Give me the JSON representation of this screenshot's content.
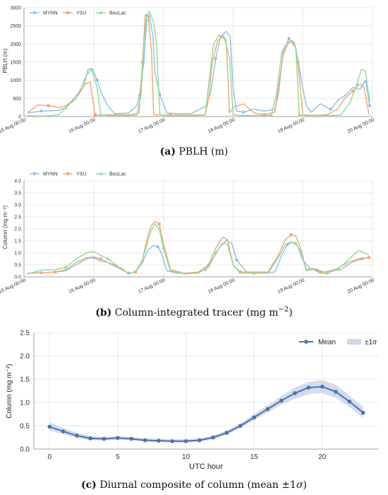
{
  "colors": {
    "mynn": "#90bde8",
    "ysu": "#f5a46e",
    "boulac": "#88de96",
    "mean": "#4b72b0",
    "band": "#cdd6ea",
    "grid": "#e3e3e3",
    "axis": "#555555"
  },
  "chart_data": [
    {
      "type": "line",
      "ylabel": "PBLH (m)",
      "xlabel": "",
      "ylim": [
        0,
        3000
      ],
      "yticks": [
        "0",
        "500",
        "1000",
        "1500",
        "2000",
        "2500",
        "3000"
      ],
      "xlim_days": [
        0,
        5
      ],
      "xticks": [
        "15 Aug 00:00",
        "16 Aug 00:00",
        "17 Aug 00:00",
        "18 Aug 00:00",
        "19 Aug 00:00",
        "20 Aug 00:00"
      ],
      "grid": true,
      "legend": "top-left",
      "caption_label": "(a)",
      "caption_text": " PBLH (m)",
      "series": [
        {
          "name": "MYNN",
          "key": "mynn",
          "x": [
            0.05,
            0.25,
            0.5,
            0.6,
            0.85,
            0.92,
            0.98,
            1.05,
            1.1,
            1.2,
            1.3,
            1.5,
            1.62,
            1.66,
            1.72,
            1.76,
            1.8,
            1.85,
            1.88,
            1.95,
            2.05,
            2.2,
            2.4,
            2.62,
            2.68,
            2.75,
            2.82,
            2.9,
            2.96,
            3.0,
            3.05,
            3.15,
            3.3,
            3.45,
            3.6,
            3.65,
            3.72,
            3.8,
            3.9,
            3.98,
            4.05,
            4.12,
            4.25,
            4.4,
            4.52,
            4.62,
            4.72,
            4.82,
            4.9,
            4.96
          ],
          "y": [
            100,
            150,
            170,
            250,
            800,
            1300,
            1320,
            1000,
            700,
            300,
            80,
            100,
            300,
            600,
            1500,
            2600,
            2800,
            2200,
            1200,
            600,
            100,
            80,
            80,
            300,
            700,
            1600,
            2200,
            2350,
            2200,
            800,
            150,
            120,
            200,
            150,
            200,
            600,
            1800,
            2150,
            1900,
            1000,
            300,
            120,
            350,
            200,
            480,
            600,
            800,
            750,
            1000,
            300
          ]
        },
        {
          "name": "YSU",
          "key": "ysu",
          "x": [
            0.05,
            0.2,
            0.35,
            0.5,
            0.6,
            0.75,
            0.88,
            0.95,
            1.02,
            1.1,
            1.2,
            1.3,
            1.55,
            1.65,
            1.7,
            1.74,
            1.78,
            1.83,
            1.86,
            1.95,
            2.1,
            2.35,
            2.6,
            2.65,
            2.7,
            2.78,
            2.85,
            2.9,
            2.95,
            3.0,
            3.15,
            3.3,
            3.45,
            3.6,
            3.65,
            3.72,
            3.8,
            3.88,
            3.93,
            4.0,
            4.15,
            4.35,
            4.5,
            4.6,
            4.72,
            4.82,
            4.88,
            4.95
          ],
          "y": [
            100,
            320,
            300,
            250,
            300,
            500,
            900,
            950,
            50,
            30,
            50,
            50,
            50,
            100,
            1500,
            2800,
            2800,
            1800,
            50,
            40,
            40,
            40,
            50,
            500,
            1500,
            2100,
            2200,
            2100,
            100,
            250,
            350,
            100,
            50,
            120,
            800,
            1700,
            2050,
            2050,
            1500,
            50,
            30,
            50,
            200,
            500,
            700,
            900,
            800,
            50
          ]
        },
        {
          "name": "BouLac",
          "key": "boulac",
          "x": [
            0.05,
            0.3,
            0.5,
            0.6,
            0.75,
            0.9,
            0.97,
            1.05,
            1.1,
            1.2,
            1.35,
            1.5,
            1.62,
            1.68,
            1.72,
            1.76,
            1.8,
            1.86,
            1.9,
            1.95,
            2.05,
            2.2,
            2.4,
            2.6,
            2.65,
            2.72,
            2.8,
            2.88,
            2.95,
            3.0,
            3.1,
            3.25,
            3.4,
            3.55,
            3.62,
            3.7,
            3.78,
            3.85,
            3.9,
            3.95,
            4.05,
            4.2,
            4.4,
            4.55,
            4.68,
            4.78,
            4.84,
            4.9,
            4.96
          ],
          "y": [
            20,
            10,
            50,
            250,
            500,
            1150,
            1300,
            800,
            50,
            30,
            30,
            30,
            40,
            600,
            2000,
            2800,
            2900,
            2600,
            2000,
            50,
            30,
            30,
            30,
            40,
            900,
            2000,
            2250,
            2150,
            1600,
            50,
            30,
            30,
            30,
            40,
            600,
            1800,
            2050,
            2100,
            1900,
            50,
            30,
            30,
            30,
            40,
            400,
            900,
            1300,
            1250,
            400
          ]
        }
      ]
    },
    {
      "type": "line",
      "ylabel": "Column (mg m⁻²)",
      "xlabel": "",
      "ylim": [
        0,
        4
      ],
      "yticks": [
        "0.0",
        "0.5",
        "1.0",
        "1.5",
        "2.0",
        "2.5",
        "3.0",
        "3.5",
        "4.0"
      ],
      "xlim_days": [
        0,
        5
      ],
      "xticks": [
        "15 Aug 00:00",
        "16 Aug 00:00",
        "17 Aug 00:00",
        "18 Aug 00:00",
        "19 Aug 00:00",
        "20 Aug 00:00"
      ],
      "grid": true,
      "legend": "top-left",
      "caption_label": "(b)",
      "caption_text": " Column-integrated tracer (mg m",
      "caption_sup": "−2",
      "caption_tail": ")",
      "series": [
        {
          "name": "MYNN",
          "key": "mynn",
          "x": [
            0.05,
            0.25,
            0.45,
            0.6,
            0.75,
            0.9,
            1.0,
            1.1,
            1.2,
            1.3,
            1.4,
            1.5,
            1.6,
            1.7,
            1.78,
            1.85,
            1.92,
            1.97,
            2.05,
            2.2,
            2.45,
            2.6,
            2.7,
            2.8,
            2.9,
            2.98,
            3.05,
            3.2,
            3.4,
            3.6,
            3.7,
            3.78,
            3.85,
            3.92,
            4.0,
            4.1,
            4.2,
            4.3,
            4.4,
            4.55,
            4.7,
            4.85,
            4.95
          ],
          "y": [
            0.15,
            0.17,
            0.2,
            0.25,
            0.5,
            0.75,
            0.8,
            0.65,
            0.6,
            0.45,
            0.3,
            0.15,
            0.2,
            0.6,
            1.1,
            1.3,
            1.25,
            1.0,
            0.25,
            0.15,
            0.15,
            0.3,
            0.7,
            1.2,
            1.5,
            1.4,
            0.7,
            0.2,
            0.15,
            0.2,
            0.9,
            1.35,
            1.45,
            1.3,
            0.7,
            0.35,
            0.3,
            0.2,
            0.25,
            0.3,
            0.6,
            0.75,
            0.8
          ]
        },
        {
          "name": "YSU",
          "key": "ysu",
          "x": [
            0.05,
            0.25,
            0.45,
            0.6,
            0.75,
            0.9,
            1.0,
            1.1,
            1.2,
            1.3,
            1.4,
            1.5,
            1.6,
            1.7,
            1.76,
            1.82,
            1.88,
            1.94,
            2.0,
            2.1,
            2.3,
            2.5,
            2.65,
            2.75,
            2.85,
            2.92,
            3.0,
            3.1,
            3.3,
            3.5,
            3.65,
            3.75,
            3.83,
            3.9,
            3.98,
            4.05,
            4.15,
            4.25,
            4.35,
            4.5,
            4.65,
            4.8,
            4.95
          ],
          "y": [
            0.15,
            0.17,
            0.2,
            0.3,
            0.6,
            0.8,
            0.82,
            0.75,
            0.6,
            0.5,
            0.35,
            0.15,
            0.2,
            0.7,
            1.5,
            2.1,
            2.3,
            2.2,
            1.4,
            0.3,
            0.15,
            0.2,
            0.5,
            1.2,
            1.65,
            1.55,
            0.5,
            0.2,
            0.2,
            0.2,
            0.9,
            1.55,
            1.75,
            1.7,
            1.1,
            0.3,
            0.35,
            0.2,
            0.2,
            0.35,
            0.6,
            0.75,
            0.8
          ]
        },
        {
          "name": "BouLac",
          "key": "boulac",
          "x": [
            0.05,
            0.25,
            0.45,
            0.6,
            0.75,
            0.9,
            1.0,
            1.1,
            1.2,
            1.3,
            1.4,
            1.5,
            1.6,
            1.7,
            1.76,
            1.82,
            1.88,
            1.94,
            2.0,
            2.1,
            2.3,
            2.5,
            2.65,
            2.75,
            2.85,
            2.92,
            3.0,
            3.1,
            3.3,
            3.5,
            3.65,
            3.75,
            3.83,
            3.9,
            3.98,
            4.05,
            4.15,
            4.25,
            4.35,
            4.5,
            4.65,
            4.8,
            4.95
          ],
          "y": [
            0.12,
            0.28,
            0.3,
            0.4,
            0.75,
            1.0,
            1.05,
            0.9,
            0.75,
            0.55,
            0.3,
            0.15,
            0.2,
            0.7,
            1.3,
            1.9,
            2.2,
            2.0,
            1.2,
            0.25,
            0.12,
            0.15,
            0.4,
            1.0,
            1.4,
            1.35,
            0.5,
            0.15,
            0.15,
            0.15,
            0.8,
            1.35,
            1.45,
            1.4,
            1.0,
            0.25,
            0.3,
            0.15,
            0.15,
            0.3,
            0.7,
            1.1,
            0.9
          ]
        }
      ]
    },
    {
      "type": "line",
      "ylabel": "Column (mg m⁻²)",
      "xlabel": "UTC hour",
      "ylim": [
        0,
        2.5
      ],
      "yticks": [
        "0.0",
        "0.5",
        "1.0",
        "1.5",
        "2.0",
        "2.5"
      ],
      "xlim": [
        -1.15,
        24.15
      ],
      "xtick_values": [
        0,
        5,
        10,
        15,
        20
      ],
      "xticks": [
        "0",
        "5",
        "10",
        "15",
        "20"
      ],
      "grid": true,
      "legend": "top-right",
      "legend_labels": [
        "Mean",
        "±1σ"
      ],
      "caption_label": "(c)",
      "caption_text": " Diurnal composite of column (mean ±1",
      "caption_sigma": "σ",
      "caption_tail": ")",
      "x": [
        0,
        1,
        2,
        3,
        4,
        5,
        6,
        7,
        8,
        9,
        10,
        11,
        12,
        13,
        14,
        15,
        16,
        17,
        18,
        19,
        20,
        21,
        22,
        23
      ],
      "mean": [
        0.48,
        0.38,
        0.29,
        0.23,
        0.22,
        0.24,
        0.22,
        0.19,
        0.18,
        0.17,
        0.17,
        0.19,
        0.25,
        0.35,
        0.5,
        0.68,
        0.86,
        1.04,
        1.2,
        1.32,
        1.34,
        1.23,
        1.02,
        0.78
      ],
      "upper": [
        0.57,
        0.45,
        0.35,
        0.28,
        0.26,
        0.28,
        0.26,
        0.23,
        0.22,
        0.21,
        0.21,
        0.23,
        0.29,
        0.4,
        0.55,
        0.75,
        0.94,
        1.14,
        1.32,
        1.44,
        1.48,
        1.38,
        1.15,
        0.9
      ],
      "lower": [
        0.4,
        0.32,
        0.24,
        0.19,
        0.19,
        0.2,
        0.19,
        0.16,
        0.15,
        0.14,
        0.14,
        0.16,
        0.21,
        0.31,
        0.45,
        0.62,
        0.79,
        0.95,
        1.08,
        1.18,
        1.2,
        1.1,
        0.9,
        0.67
      ]
    }
  ]
}
